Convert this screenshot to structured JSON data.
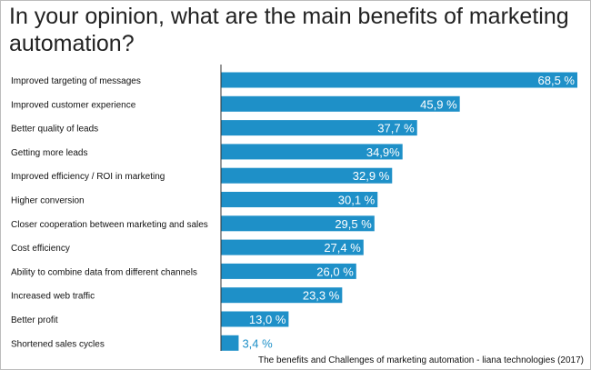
{
  "chart_data": {
    "type": "bar",
    "orientation": "horizontal",
    "title": "In your opinion, what are the main benefits of marketing automation?",
    "categories": [
      "Improved targeting of messages",
      "Improved customer experience",
      "Better quality of leads",
      "Getting more leads",
      "Improved efficiency / ROI in marketing",
      "Higher conversion",
      "Closer cooperation between marketing and sales",
      "Cost efficiency",
      "Ability to combine data from different channels",
      "Increased web traffic",
      "Better profit",
      "Shortened sales cycles"
    ],
    "values": [
      68.5,
      45.9,
      37.7,
      34.9,
      32.9,
      30.1,
      29.5,
      27.4,
      26.0,
      23.3,
      13.0,
      3.4
    ],
    "value_labels": [
      "68,5 %",
      "45,9 %",
      "37,7 %",
      "34,9%",
      "32,9 %",
      "30,1 %",
      "29,5 %",
      "27,4 %",
      "26,0 %",
      "23,3 %",
      "13,0 %",
      "3,4 %"
    ],
    "unit": "%",
    "xlim": [
      0,
      68.5
    ],
    "grid": false,
    "legend": "none",
    "bar_color": "#1e90c8",
    "source": "The benefits and Challenges of marketing automation - liana technologies (2017)"
  }
}
